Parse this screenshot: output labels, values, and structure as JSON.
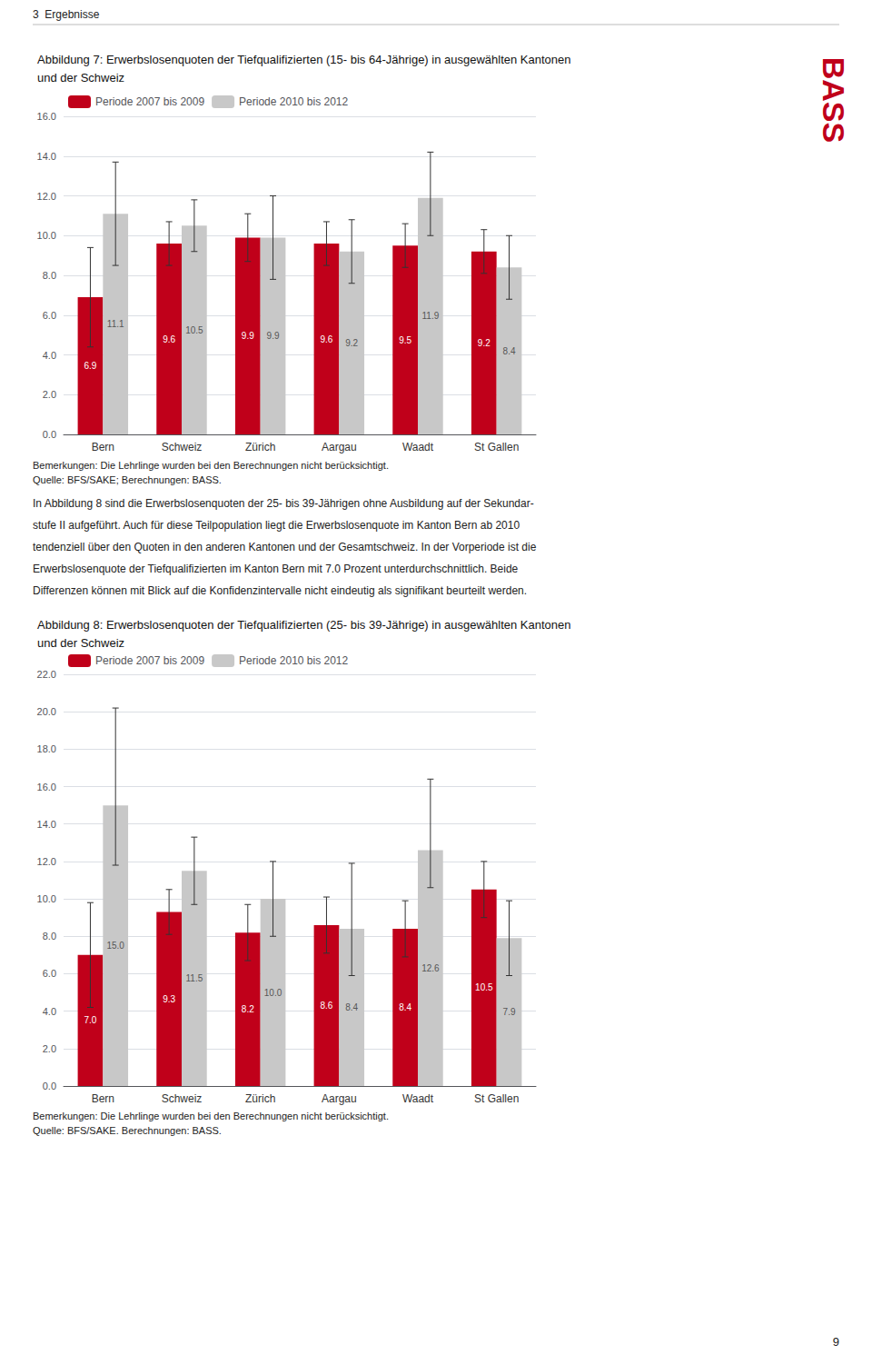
{
  "chart_data": [
    {
      "type": "bar",
      "title": "Abbildung 7: Erwerbslosenquoten der Tiefqualifizierten (15- bis 64-Jährige) in ausgewählten Kantonen\nund der Schweiz",
      "categories": [
        "Bern",
        "Schweiz",
        "Zürich",
        "Aargau",
        "Waadt",
        "St Gallen"
      ],
      "series": [
        {
          "name": "Periode 2007 bis 2009",
          "color": "#c0001a",
          "values": [
            6.9,
            9.6,
            9.9,
            9.6,
            9.5,
            9.2
          ],
          "value_labels": [
            "6.9",
            "9.6",
            "9.9",
            "9.6",
            "9.5",
            "9.2"
          ],
          "error_low": [
            2.5,
            1.1,
            1.2,
            1.1,
            1.1,
            1.1
          ],
          "error_high": [
            2.5,
            1.1,
            1.2,
            1.1,
            1.1,
            1.1
          ]
        },
        {
          "name": "Periode 2010 bis 2012",
          "color": "#c8c8c8",
          "values": [
            11.1,
            10.5,
            9.9,
            9.2,
            11.9,
            8.4
          ],
          "value_labels": [
            "11.1",
            "10.5",
            "9.9",
            "9.2",
            "11.9",
            "8.4"
          ],
          "error_low": [
            2.6,
            1.3,
            2.1,
            1.6,
            1.9,
            1.6
          ],
          "error_high": [
            2.6,
            1.3,
            2.1,
            1.6,
            2.3,
            1.6
          ]
        }
      ],
      "ylim": [
        0,
        16
      ],
      "yticks": [
        {
          "value": 0,
          "label": "0.0"
        },
        {
          "value": 2,
          "label": "2.0"
        },
        {
          "value": 4,
          "label": "4.0"
        },
        {
          "value": 6,
          "label": "6.0"
        },
        {
          "value": 8,
          "label": "8.0"
        },
        {
          "value": 10,
          "label": "10.0"
        },
        {
          "value": 12,
          "label": "12.0"
        },
        {
          "value": 14,
          "label": "14.0"
        },
        {
          "value": 16,
          "label": "16.0"
        }
      ],
      "grid": true,
      "legend": "upper left",
      "data_labels": true,
      "annotations": [
        "3  Ergebnisse",
        {
          "text": "BASS",
          "color": "#c0001a"
        },
        "Bemerkungen: Die Lehrlinge wurden bei den Berechnungen nicht berücksichtigt.",
        "Quelle: BFS/SAKE; Berechnungen: BASS.",
        "In Abbildung 8 sind die Erwerbslosenquoten der 25- bis 39-Jährigen ohne Ausbildung auf der Sekundar-",
        "stufe II aufgeführt. Auch für diese Teilpopulation liegt die Erwerbslosenquote im Kanton Bern ab 2010",
        "tendenziell über den Quoten in den anderen Kantonen und der Gesamtschweiz. In der Vorperiode ist die",
        "Erwerbslosenquote der Tiefqualifizierten im Kanton Bern mit 7.0 Prozent unterdurchschnittlich. Beide",
        "Differenzen können mit Blick auf die Konfidenzintervalle nicht eindeutig als signifikant beurteilt werden."
      ]
    },
    {
      "type": "bar",
      "title": "Abbildung 8: Erwerbslosenquoten der Tiefqualifizierten (25- bis 39-Jährige) in ausgewählten Kantonen\nund der Schweiz",
      "categories": [
        "Bern",
        "Schweiz",
        "Zürich",
        "Aargau",
        "Waadt",
        "St Gallen"
      ],
      "series": [
        {
          "name": "Periode 2007 bis 2009",
          "color": "#c0001a",
          "values": [
            7.0,
            9.3,
            8.2,
            8.6,
            8.4,
            10.5
          ],
          "value_labels": [
            "7.0",
            "9.3",
            "8.2",
            "8.6",
            "8.4",
            "10.5"
          ],
          "error_low": [
            2.8,
            1.2,
            1.5,
            1.5,
            1.5,
            1.5
          ],
          "error_high": [
            2.8,
            1.2,
            1.5,
            1.5,
            1.5,
            1.5
          ]
        },
        {
          "name": "Periode 2010 bis 2012",
          "color": "#c8c8c8",
          "values": [
            15.0,
            11.5,
            10.0,
            8.4,
            12.6,
            7.9
          ],
          "value_labels": [
            "15.0",
            "11.5",
            "10.0",
            "8.4",
            "12.6",
            "7.9"
          ],
          "error_low": [
            3.2,
            1.8,
            2.0,
            2.5,
            2.0,
            2.0
          ],
          "error_high": [
            5.2,
            1.8,
            2.0,
            3.5,
            3.8,
            2.0
          ]
        }
      ],
      "ylim": [
        0,
        22
      ],
      "yticks": [
        {
          "value": 0,
          "label": "0.0"
        },
        {
          "value": 2,
          "label": "2.0"
        },
        {
          "value": 4,
          "label": "4.0"
        },
        {
          "value": 6,
          "label": "6.0"
        },
        {
          "value": 8,
          "label": "8.0"
        },
        {
          "value": 10,
          "label": "10.0"
        },
        {
          "value": 12,
          "label": "12.0"
        },
        {
          "value": 14,
          "label": "14.0"
        },
        {
          "value": 16,
          "label": "16.0"
        },
        {
          "value": 18,
          "label": "18.0"
        },
        {
          "value": 20,
          "label": "20.0"
        },
        {
          "value": 22,
          "label": "22.0"
        }
      ],
      "grid": true,
      "legend": "upper left",
      "data_labels": true,
      "annotations": [
        "Bemerkungen: Die Lehrlinge wurden bei den Berechnungen nicht berücksichtigt.",
        "Quelle: BFS/SAKE. Berechnungen: BASS.",
        "9"
      ]
    }
  ]
}
